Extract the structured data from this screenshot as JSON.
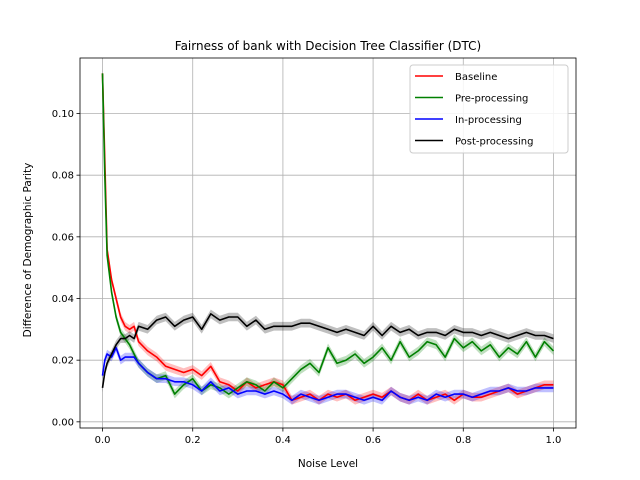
{
  "chart_data": {
    "type": "line",
    "title": "Fairness of bank with Decision Tree Classifier (DTC)",
    "xlabel": "Noise Level",
    "ylabel": "Difference of Demographic Parity",
    "xlim": [
      -0.05,
      1.05
    ],
    "ylim": [
      -0.002,
      0.118
    ],
    "xticks": [
      "0.0",
      "0.2",
      "0.4",
      "0.6",
      "0.8",
      "1.0"
    ],
    "xtick_values": [
      0.0,
      0.2,
      0.4,
      0.6,
      0.8,
      1.0
    ],
    "yticks": [
      "0.00",
      "0.02",
      "0.04",
      "0.06",
      "0.08",
      "0.10"
    ],
    "ytick_values": [
      0.0,
      0.02,
      0.04,
      0.06,
      0.08,
      0.1
    ],
    "grid": true,
    "legend_position": "top-right",
    "series": [
      {
        "name": "Baseline",
        "color": "#ff0000",
        "x": [
          0.0,
          0.005,
          0.01,
          0.02,
          0.03,
          0.04,
          0.05,
          0.06,
          0.07,
          0.08,
          0.1,
          0.12,
          0.14,
          0.16,
          0.18,
          0.2,
          0.22,
          0.24,
          0.26,
          0.28,
          0.3,
          0.32,
          0.34,
          0.36,
          0.38,
          0.4,
          0.42,
          0.44,
          0.46,
          0.48,
          0.5,
          0.52,
          0.54,
          0.56,
          0.58,
          0.6,
          0.62,
          0.64,
          0.66,
          0.68,
          0.7,
          0.72,
          0.74,
          0.76,
          0.78,
          0.8,
          0.82,
          0.84,
          0.86,
          0.88,
          0.9,
          0.92,
          0.94,
          0.96,
          0.98,
          1.0
        ],
        "y": [
          0.113,
          0.085,
          0.056,
          0.046,
          0.04,
          0.034,
          0.031,
          0.03,
          0.031,
          0.026,
          0.023,
          0.021,
          0.018,
          0.017,
          0.016,
          0.017,
          0.015,
          0.018,
          0.013,
          0.012,
          0.01,
          0.013,
          0.011,
          0.012,
          0.013,
          0.012,
          0.007,
          0.008,
          0.009,
          0.007,
          0.009,
          0.008,
          0.009,
          0.007,
          0.008,
          0.009,
          0.008,
          0.01,
          0.008,
          0.007,
          0.009,
          0.007,
          0.008,
          0.009,
          0.007,
          0.009,
          0.008,
          0.008,
          0.009,
          0.01,
          0.011,
          0.009,
          0.01,
          0.011,
          0.012,
          0.012
        ]
      },
      {
        "name": "Pre-processing",
        "color": "#008000",
        "x": [
          0.0,
          0.005,
          0.01,
          0.02,
          0.03,
          0.04,
          0.05,
          0.06,
          0.07,
          0.08,
          0.1,
          0.12,
          0.14,
          0.16,
          0.18,
          0.2,
          0.22,
          0.24,
          0.26,
          0.28,
          0.3,
          0.32,
          0.34,
          0.36,
          0.38,
          0.4,
          0.42,
          0.44,
          0.46,
          0.48,
          0.5,
          0.52,
          0.54,
          0.56,
          0.58,
          0.6,
          0.62,
          0.64,
          0.66,
          0.68,
          0.7,
          0.72,
          0.74,
          0.76,
          0.78,
          0.8,
          0.82,
          0.84,
          0.86,
          0.88,
          0.9,
          0.92,
          0.94,
          0.96,
          0.98,
          1.0
        ],
        "y": [
          0.113,
          0.08,
          0.054,
          0.042,
          0.034,
          0.029,
          0.027,
          0.025,
          0.022,
          0.019,
          0.016,
          0.014,
          0.015,
          0.009,
          0.012,
          0.014,
          0.01,
          0.012,
          0.011,
          0.009,
          0.011,
          0.013,
          0.012,
          0.01,
          0.013,
          0.011,
          0.014,
          0.017,
          0.019,
          0.016,
          0.024,
          0.019,
          0.02,
          0.022,
          0.019,
          0.021,
          0.024,
          0.02,
          0.026,
          0.021,
          0.023,
          0.026,
          0.025,
          0.021,
          0.027,
          0.024,
          0.026,
          0.023,
          0.025,
          0.021,
          0.024,
          0.022,
          0.026,
          0.021,
          0.026,
          0.023
        ]
      },
      {
        "name": "In-processing",
        "color": "#0000ff",
        "x": [
          0.0,
          0.005,
          0.01,
          0.02,
          0.03,
          0.04,
          0.05,
          0.06,
          0.07,
          0.08,
          0.1,
          0.12,
          0.14,
          0.16,
          0.18,
          0.2,
          0.22,
          0.24,
          0.26,
          0.28,
          0.3,
          0.32,
          0.34,
          0.36,
          0.38,
          0.4,
          0.42,
          0.44,
          0.46,
          0.48,
          0.5,
          0.52,
          0.54,
          0.56,
          0.58,
          0.6,
          0.62,
          0.64,
          0.66,
          0.68,
          0.7,
          0.72,
          0.74,
          0.76,
          0.78,
          0.8,
          0.82,
          0.84,
          0.86,
          0.88,
          0.9,
          0.92,
          0.94,
          0.96,
          0.98,
          1.0
        ],
        "y": [
          0.015,
          0.02,
          0.022,
          0.021,
          0.024,
          0.02,
          0.021,
          0.021,
          0.021,
          0.019,
          0.016,
          0.014,
          0.014,
          0.013,
          0.013,
          0.012,
          0.01,
          0.013,
          0.01,
          0.011,
          0.009,
          0.01,
          0.01,
          0.009,
          0.01,
          0.009,
          0.007,
          0.009,
          0.008,
          0.007,
          0.008,
          0.009,
          0.009,
          0.008,
          0.007,
          0.008,
          0.007,
          0.01,
          0.008,
          0.007,
          0.008,
          0.007,
          0.009,
          0.008,
          0.009,
          0.009,
          0.008,
          0.009,
          0.01,
          0.01,
          0.011,
          0.01,
          0.01,
          0.011,
          0.011,
          0.011
        ]
      },
      {
        "name": "Post-processing",
        "color": "#000000",
        "x": [
          0.0,
          0.005,
          0.01,
          0.02,
          0.03,
          0.04,
          0.05,
          0.06,
          0.07,
          0.08,
          0.1,
          0.12,
          0.14,
          0.16,
          0.18,
          0.2,
          0.22,
          0.24,
          0.26,
          0.28,
          0.3,
          0.32,
          0.34,
          0.36,
          0.38,
          0.4,
          0.42,
          0.44,
          0.46,
          0.48,
          0.5,
          0.52,
          0.54,
          0.56,
          0.58,
          0.6,
          0.62,
          0.64,
          0.66,
          0.68,
          0.7,
          0.72,
          0.74,
          0.76,
          0.78,
          0.8,
          0.82,
          0.84,
          0.86,
          0.88,
          0.9,
          0.92,
          0.94,
          0.96,
          0.98,
          1.0
        ],
        "y": [
          0.011,
          0.016,
          0.019,
          0.022,
          0.025,
          0.027,
          0.027,
          0.028,
          0.027,
          0.031,
          0.03,
          0.033,
          0.034,
          0.031,
          0.033,
          0.034,
          0.03,
          0.035,
          0.033,
          0.034,
          0.034,
          0.031,
          0.033,
          0.03,
          0.031,
          0.031,
          0.031,
          0.032,
          0.032,
          0.031,
          0.03,
          0.029,
          0.03,
          0.029,
          0.028,
          0.031,
          0.028,
          0.031,
          0.029,
          0.03,
          0.028,
          0.029,
          0.029,
          0.028,
          0.03,
          0.029,
          0.029,
          0.028,
          0.029,
          0.028,
          0.027,
          0.028,
          0.029,
          0.028,
          0.028,
          0.027
        ]
      }
    ]
  }
}
